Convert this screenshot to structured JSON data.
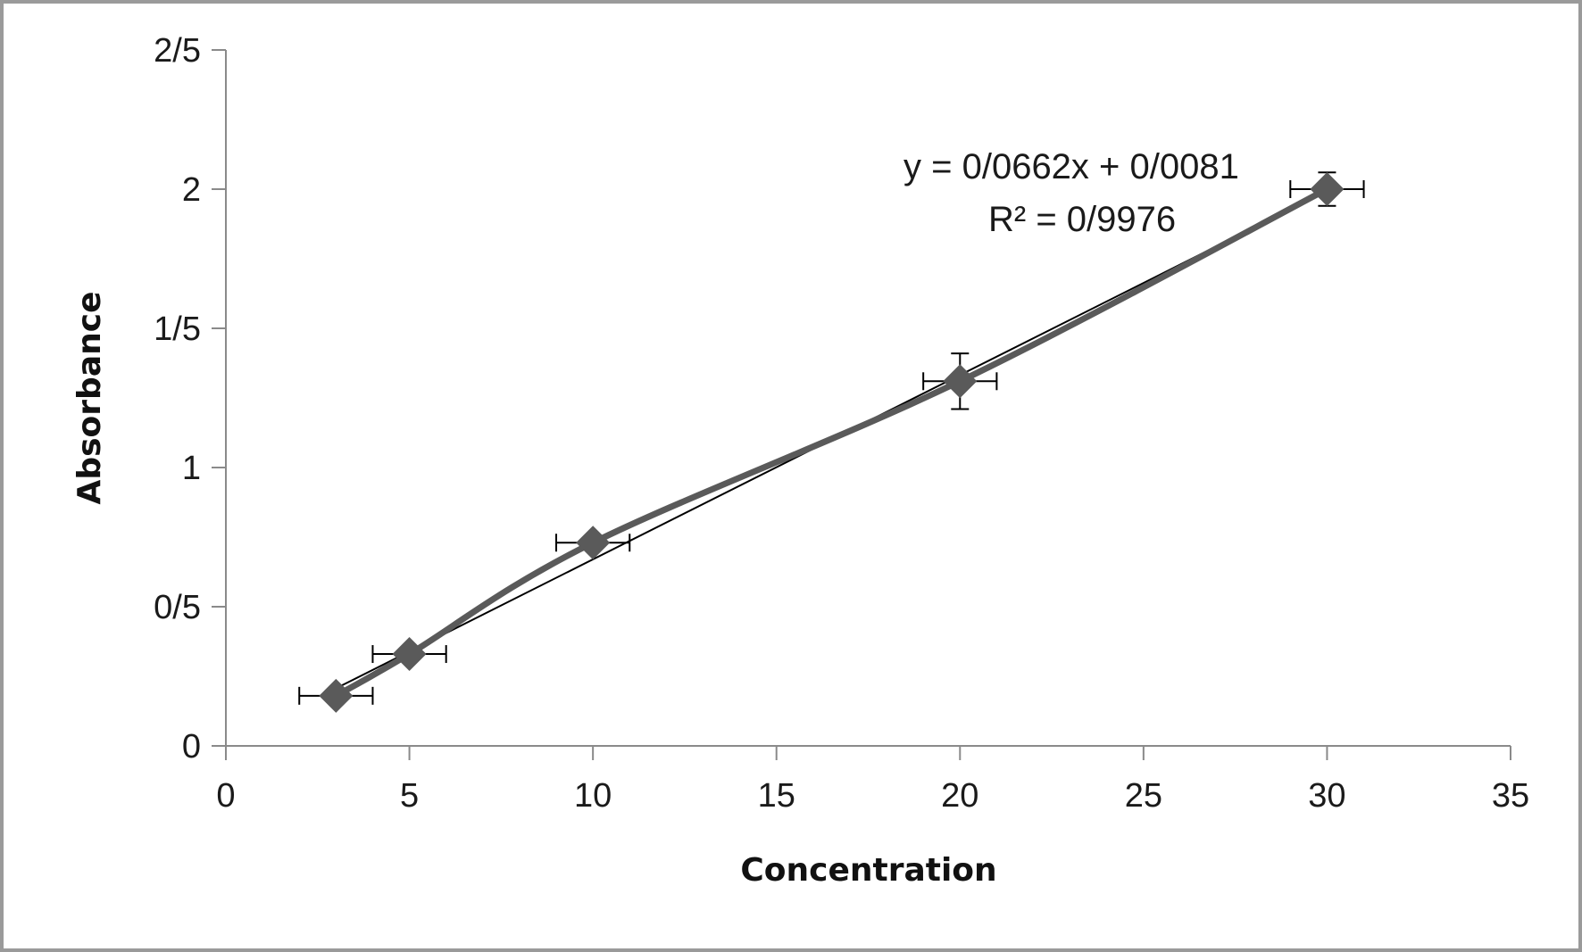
{
  "chart_data": {
    "type": "scatter",
    "xlabel": "Concentration",
    "ylabel": "Absorbance",
    "xlim": [
      0,
      35
    ],
    "ylim": [
      0,
      2.5
    ],
    "x_ticks": [
      {
        "value": 0,
        "label": "0"
      },
      {
        "value": 5,
        "label": "5"
      },
      {
        "value": 10,
        "label": "10"
      },
      {
        "value": 15,
        "label": "15"
      },
      {
        "value": 20,
        "label": "20"
      },
      {
        "value": 25,
        "label": "25"
      },
      {
        "value": 30,
        "label": "30"
      },
      {
        "value": 35,
        "label": "35"
      }
    ],
    "y_ticks": [
      {
        "value": 0,
        "label": "0"
      },
      {
        "value": 0.5,
        "label": "0/5"
      },
      {
        "value": 1,
        "label": "1"
      },
      {
        "value": 1.5,
        "label": "1/5"
      },
      {
        "value": 2,
        "label": "2"
      },
      {
        "value": 2.5,
        "label": "2/5"
      }
    ],
    "grid": false,
    "series": [
      {
        "marker": "diamond",
        "color": "#5a5a5a",
        "connected": true,
        "points": [
          {
            "x": 3,
            "y": 0.18,
            "x_err": 1,
            "y_err": 0
          },
          {
            "x": 5,
            "y": 0.33,
            "x_err": 1,
            "y_err": 0
          },
          {
            "x": 10,
            "y": 0.73,
            "x_err": 1,
            "y_err": 0
          },
          {
            "x": 20,
            "y": 1.31,
            "x_err": 1,
            "y_err": 0.1
          },
          {
            "x": 30,
            "y": 2.0,
            "x_err": 1,
            "y_err": 0.06
          }
        ]
      }
    ],
    "trendline": {
      "slope": 0.0662,
      "intercept": 0.0081,
      "x_range": [
        3,
        30
      ],
      "equation_text": "y = 0/0662x + 0/0081",
      "r2_text": "R² = 0/9976"
    }
  }
}
